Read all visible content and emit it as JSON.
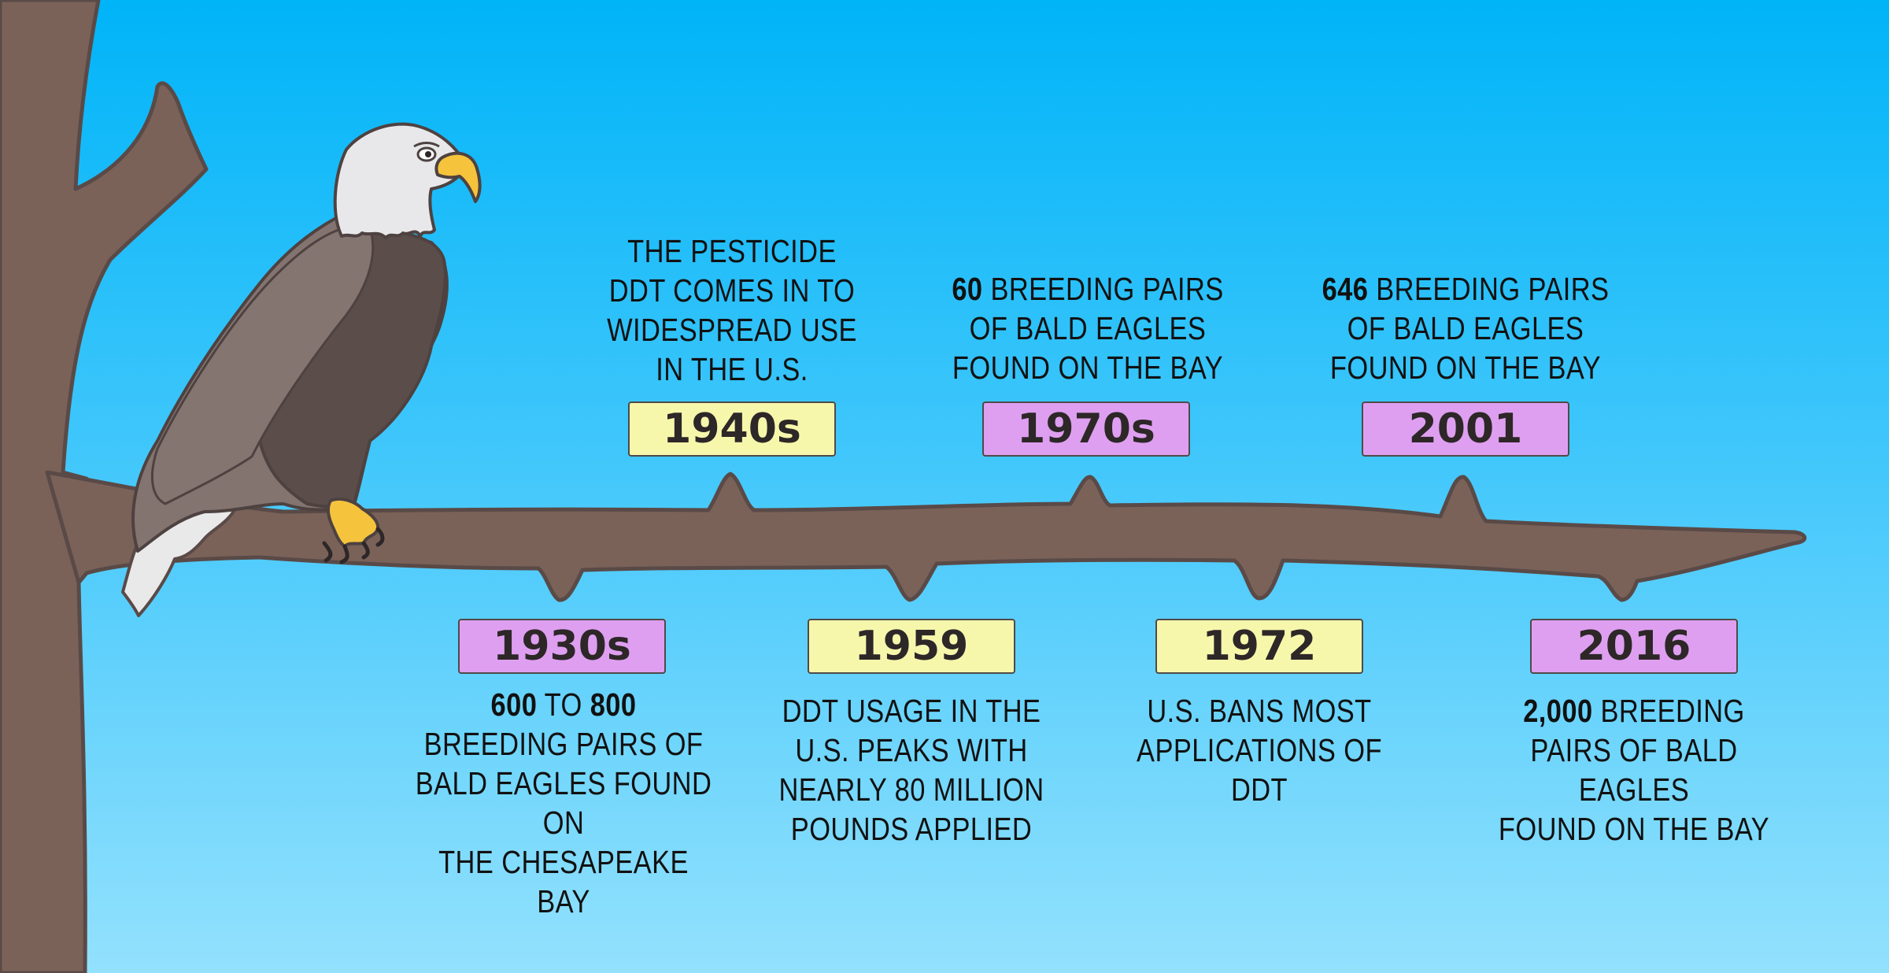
{
  "colors": {
    "sky_top": "#00b4f8",
    "sky_bottom": "#93e1fd",
    "branch": "#7a6259",
    "branch_outline": "#5a4a47",
    "badge_yellow": "#f7f7ac",
    "badge_purple": "#df9ff0",
    "eagle_body": "#857571",
    "eagle_wing": "#5b4d49",
    "eagle_head": "#e8e8ea",
    "beak": "#f5c43c"
  },
  "icons": {
    "eagle": "bald-eagle-icon",
    "tree": "tree-trunk-branch-icon"
  },
  "timeline": {
    "events": [
      {
        "year": "1930s",
        "badge_color": "purple",
        "line1_bold": "600",
        "line1_mid": " TO ",
        "line1_bold2": "800",
        "rest": [
          "BREEDING PAIRS OF",
          "BALD EAGLES FOUND ON",
          "THE CHESAPEAKE BAY"
        ]
      },
      {
        "year": "1940s",
        "badge_color": "yellow",
        "lines": [
          "THE PESTICIDE",
          "DDT COMES IN TO",
          "WIDESPREAD USE",
          "IN THE U.S."
        ]
      },
      {
        "year": "1959",
        "badge_color": "yellow",
        "lines": [
          "DDT USAGE IN THE",
          "U.S. PEAKS WITH",
          "NEARLY 80 MILLION",
          "POUNDS APPLIED"
        ]
      },
      {
        "year": "1970s",
        "badge_color": "purple",
        "bold": "60",
        "first_rest": " BREEDING PAIRS",
        "rest": [
          "OF BALD EAGLES",
          "FOUND ON THE BAY"
        ]
      },
      {
        "year": "1972",
        "badge_color": "yellow",
        "lines": [
          "U.S. BANS MOST",
          "APPLICATIONS OF DDT"
        ]
      },
      {
        "year": "2001",
        "badge_color": "purple",
        "bold": "646",
        "first_rest": " BREEDING PAIRS",
        "rest": [
          "OF BALD EAGLES",
          "FOUND ON THE BAY"
        ]
      },
      {
        "year": "2016",
        "badge_color": "purple",
        "bold": "2,000",
        "first_rest": " BREEDING",
        "rest": [
          "PAIRS OF BALD EAGLES",
          "FOUND ON THE BAY"
        ]
      }
    ]
  }
}
